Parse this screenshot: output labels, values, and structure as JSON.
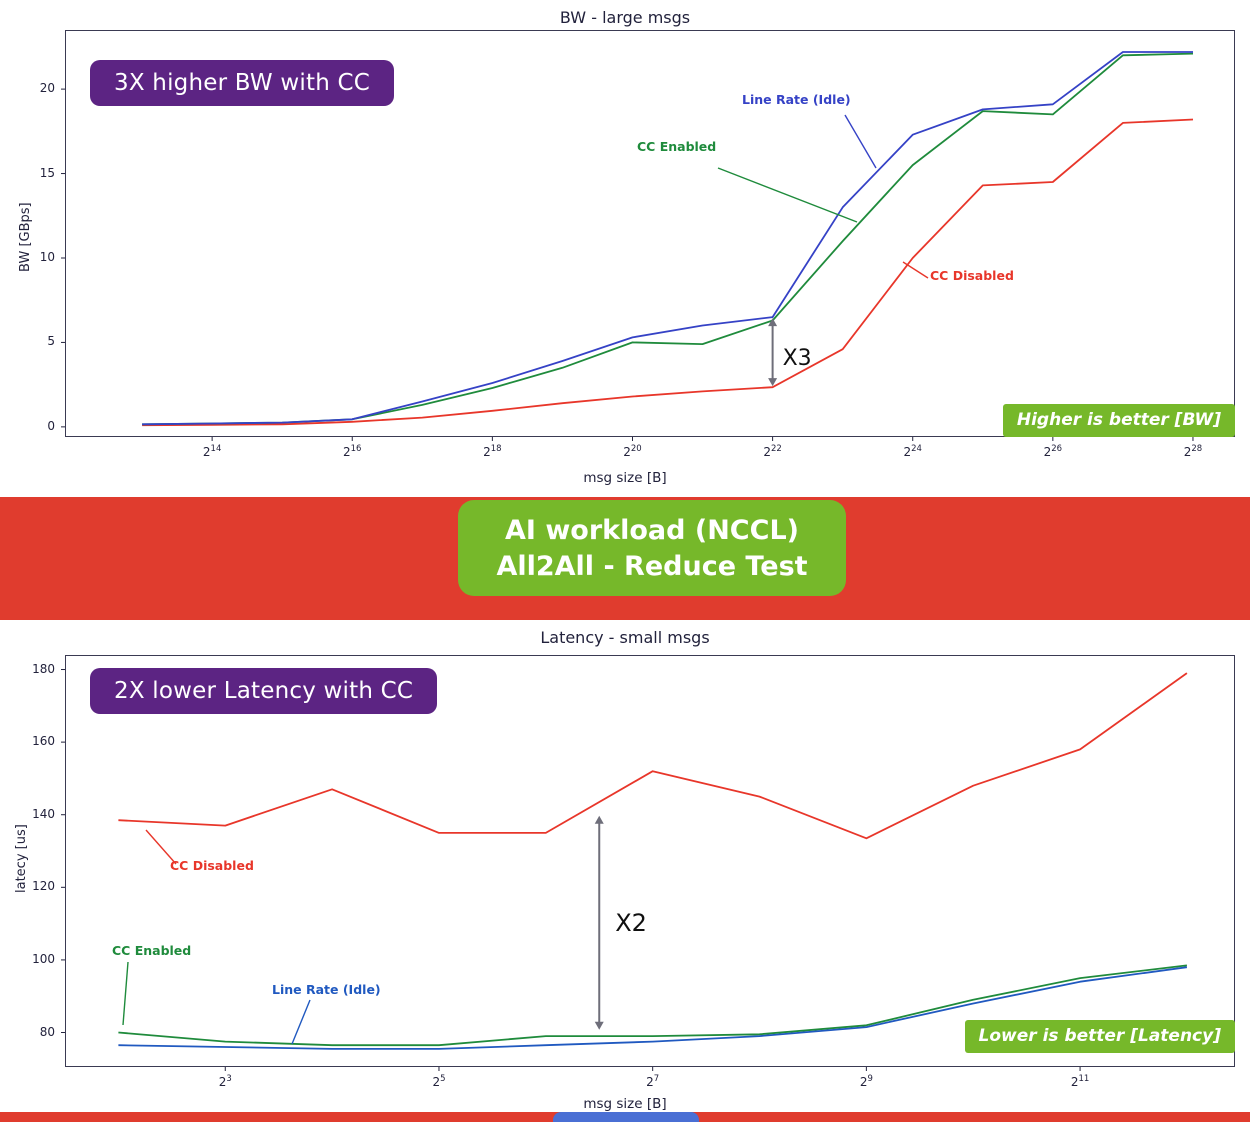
{
  "colors": {
    "background": "#e03c2e",
    "nvidia_green": "#76b82a",
    "purple": "#5c2483",
    "panel_white": "#ffffff",
    "axis_text": "#22223c",
    "annotation_arrow": "#6e6e7a",
    "next_slide_blue": "#4a6fd4"
  },
  "workload_badge": {
    "line1": "AI workload (NCCL)",
    "line2": "All2All - Reduce Test"
  },
  "bw_chart": {
    "callout": "3X higher BW with CC",
    "better_badge": "Higher is better [BW]"
  },
  "latency_chart": {
    "callout": "2X lower Latency with CC",
    "better_badge": "Lower is better [Latency]"
  },
  "chart_data": [
    {
      "id": "bw-large-msgs",
      "type": "line",
      "title": "BW - large msgs",
      "xlabel": "msg size [B]",
      "ylabel": "BW [GBps]",
      "grid": false,
      "legend_position": "inline-annotations",
      "x_axis": {
        "base": 2,
        "exponents": [
          13,
          14,
          15,
          16,
          17,
          18,
          19,
          20,
          21,
          22,
          23,
          24,
          25,
          26,
          27,
          28
        ],
        "tick_exponents": [
          14,
          16,
          18,
          20,
          22,
          24,
          26,
          28
        ],
        "lim_exponents": [
          11.9,
          28.6
        ]
      },
      "y_axis": {
        "ticks": [
          0,
          5,
          10,
          15,
          20
        ],
        "lim": [
          -0.6,
          23.5
        ]
      },
      "series": [
        {
          "key": "cc-disabled",
          "name": "CC Disabled",
          "color": "#e8362a",
          "values": [
            0.1,
            0.12,
            0.15,
            0.3,
            0.55,
            0.95,
            1.4,
            1.8,
            2.1,
            2.35,
            4.6,
            10.0,
            14.3,
            14.5,
            18.0,
            18.2
          ]
        },
        {
          "key": "cc-enabled",
          "name": "CC Enabled",
          "color": "#1f8b3c",
          "values": [
            0.15,
            0.2,
            0.25,
            0.45,
            1.3,
            2.3,
            3.5,
            5.0,
            4.9,
            6.3,
            11.0,
            15.5,
            18.7,
            18.5,
            22.0,
            22.1
          ]
        },
        {
          "key": "line-rate-idle",
          "name": "Line Rate (Idle)",
          "color": "#3542c6",
          "values": [
            0.15,
            0.2,
            0.25,
            0.45,
            1.5,
            2.6,
            3.9,
            5.3,
            6.0,
            6.5,
            13.0,
            17.3,
            18.8,
            19.1,
            22.2,
            22.2
          ]
        }
      ],
      "annotation": {
        "text": "X3",
        "at_exponent": 22,
        "from_value": 2.35,
        "to_value": 6.5
      }
    },
    {
      "id": "latency-small-msgs",
      "type": "line",
      "title": "Latency - small msgs",
      "xlabel": "msg size [B]",
      "ylabel": "latecy [us]",
      "grid": false,
      "legend_position": "inline-annotations",
      "x_axis": {
        "base": 2,
        "exponents": [
          2,
          3,
          4,
          5,
          6,
          7,
          8,
          9,
          10,
          11,
          12
        ],
        "tick_exponents": [
          3,
          5,
          7,
          9,
          11
        ],
        "lim_exponents": [
          1.5,
          12.45
        ]
      },
      "y_axis": {
        "ticks": [
          80,
          100,
          120,
          140,
          160,
          180
        ],
        "lim": [
          70.5,
          184
        ]
      },
      "series": [
        {
          "key": "cc-disabled",
          "name": "CC Disabled",
          "color": "#e8362a",
          "values": [
            138.5,
            137,
            147,
            135,
            135,
            152,
            145,
            133.5,
            148,
            158,
            179
          ]
        },
        {
          "key": "cc-enabled",
          "name": "CC Enabled",
          "color": "#1f8b3c",
          "values": [
            80,
            77.5,
            76.5,
            76.5,
            79,
            79,
            79.5,
            82,
            89,
            95,
            98.5
          ]
        },
        {
          "key": "line-rate-idle",
          "name": "Line Rate (Idle)",
          "color": "#2059c0",
          "values": [
            76.5,
            76,
            75.5,
            75.5,
            76.5,
            77.5,
            79,
            81.5,
            88,
            94,
            98
          ]
        }
      ],
      "annotation": {
        "text": "X2",
        "at_exponent": 6.5,
        "from_value": 80.5,
        "to_value": 140
      }
    }
  ]
}
